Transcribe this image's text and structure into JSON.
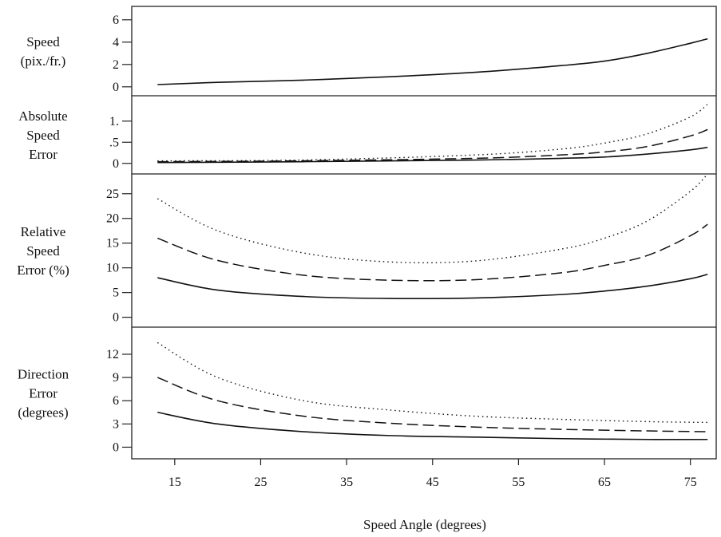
{
  "chart_data": {
    "type": "line",
    "xlabel": "Speed Angle (degrees)",
    "xlim": [
      10,
      78
    ],
    "xticks": [
      15,
      25,
      35,
      45,
      55,
      65,
      75
    ],
    "panels": [
      {
        "label_lines": [
          "Speed",
          "(pix./fr.)"
        ],
        "ylim": [
          -0.8,
          7.2
        ],
        "yticks": [
          0,
          2,
          4,
          6
        ],
        "ytick_labels": [
          "0",
          "2",
          "4",
          "6"
        ],
        "series": [
          {
            "style": "solid",
            "x": [
              13,
              20,
              30,
              40,
              50,
              60,
              65,
              70,
              75,
              77
            ],
            "values": [
              0.2,
              0.4,
              0.6,
              0.9,
              1.3,
              1.9,
              2.3,
              3.0,
              3.9,
              4.3
            ]
          }
        ]
      },
      {
        "label_lines": [
          "Absolute",
          "Speed",
          "Error"
        ],
        "ylim": [
          -0.25,
          1.6
        ],
        "yticks": [
          0,
          0.5,
          1
        ],
        "ytick_labels": [
          "0",
          ".5",
          "1."
        ],
        "series": [
          {
            "style": "solid",
            "x": [
              13,
              30,
              50,
              60,
              65,
              70,
              75,
              77
            ],
            "values": [
              0.02,
              0.04,
              0.08,
              0.12,
              0.15,
              0.22,
              0.32,
              0.38
            ]
          },
          {
            "style": "dashed",
            "x": [
              13,
              30,
              50,
              60,
              65,
              70,
              75,
              77
            ],
            "values": [
              0.04,
              0.06,
              0.12,
              0.2,
              0.27,
              0.4,
              0.65,
              0.8
            ]
          },
          {
            "style": "dotted",
            "x": [
              13,
              30,
              50,
              60,
              65,
              70,
              75,
              77
            ],
            "values": [
              0.06,
              0.08,
              0.2,
              0.34,
              0.48,
              0.7,
              1.1,
              1.4
            ]
          }
        ]
      },
      {
        "label_lines": [
          "Relative",
          "Speed",
          "Error (%)"
        ],
        "ylim": [
          -2,
          29
        ],
        "yticks": [
          0,
          5,
          10,
          15,
          20,
          25
        ],
        "ytick_labels": [
          "0",
          "5",
          "10",
          "15",
          "20",
          "25"
        ],
        "series": [
          {
            "style": "solid",
            "x": [
              13,
              20,
              30,
              40,
              50,
              60,
              65,
              70,
              75,
              77
            ],
            "values": [
              8.0,
              5.5,
              4.2,
              3.8,
              3.9,
              4.6,
              5.3,
              6.3,
              7.8,
              8.7
            ]
          },
          {
            "style": "dashed",
            "x": [
              13,
              20,
              30,
              40,
              50,
              60,
              65,
              70,
              75,
              77
            ],
            "values": [
              16.0,
              11.5,
              8.5,
              7.5,
              7.6,
              9.0,
              10.5,
              12.5,
              16.5,
              18.8
            ]
          },
          {
            "style": "dotted",
            "x": [
              13,
              20,
              30,
              40,
              50,
              60,
              65,
              70,
              75,
              77
            ],
            "values": [
              24.0,
              17.5,
              13.0,
              11.2,
              11.4,
              13.8,
              16.0,
              19.5,
              25.5,
              29.0
            ]
          }
        ]
      },
      {
        "label_lines": [
          "Direction",
          "Error",
          "(degrees)"
        ],
        "ylim": [
          -1.5,
          15.5
        ],
        "yticks": [
          0,
          3,
          6,
          9,
          12
        ],
        "ytick_labels": [
          "0",
          "3",
          "6",
          "9",
          "12"
        ],
        "series": [
          {
            "style": "solid",
            "x": [
              13,
              20,
              30,
              40,
              50,
              60,
              70,
              77
            ],
            "values": [
              4.5,
              3.0,
              2.0,
              1.5,
              1.3,
              1.1,
              1.0,
              1.0
            ]
          },
          {
            "style": "dashed",
            "x": [
              13,
              20,
              30,
              40,
              50,
              60,
              70,
              77
            ],
            "values": [
              9.0,
              6.0,
              4.0,
              3.1,
              2.6,
              2.3,
              2.1,
              2.0
            ]
          },
          {
            "style": "dotted",
            "x": [
              13,
              20,
              30,
              40,
              50,
              60,
              70,
              77
            ],
            "values": [
              13.5,
              9.0,
              6.0,
              4.8,
              4.0,
              3.6,
              3.3,
              3.2
            ]
          }
        ]
      }
    ]
  }
}
